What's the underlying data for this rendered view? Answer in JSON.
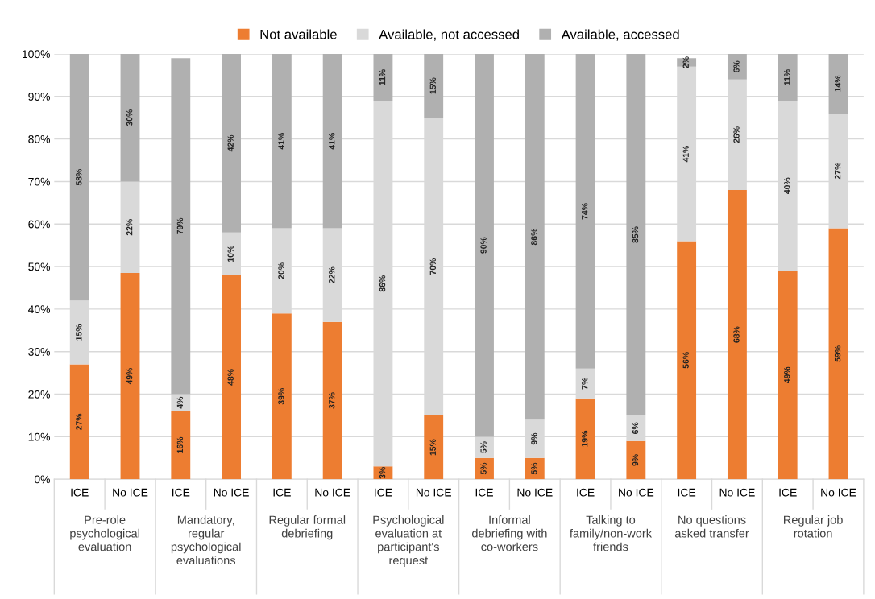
{
  "chart_data": {
    "type": "bar",
    "stacked": true,
    "categories": [
      "ICE",
      "No ICE",
      "ICE",
      "No ICE",
      "ICE",
      "No ICE",
      "ICE",
      "No ICE",
      "ICE",
      "No ICE",
      "ICE",
      "No ICE",
      "ICE",
      "No ICE",
      "ICE",
      "No ICE"
    ],
    "annotations": [
      "Pre-role psychological evaluation",
      "Mandatory, regular psychological evaluations",
      "Regular formal debriefing",
      "Psychological evaluation at participant's request",
      "Informal debriefing with co-workers",
      "Talking to family/non-work friends",
      "No questions asked transfer",
      "Regular job rotation"
    ],
    "series": [
      {
        "name": "Not available",
        "color": "#ed7d31",
        "values": [
          27,
          48.5,
          16,
          48,
          39,
          37,
          3,
          15,
          5,
          5,
          19,
          9,
          56,
          68,
          49,
          59
        ],
        "value_labels": [
          "27%",
          "49%",
          "16%",
          "48%",
          "39%",
          "37%",
          "3%",
          "15%",
          "5%",
          "5%",
          "19%",
          "9%",
          "56%",
          "68%",
          "49%",
          "59%"
        ]
      },
      {
        "name": "Available, not accessed",
        "color": "#d9d9d9",
        "values": [
          15,
          21.5,
          4,
          10,
          20,
          22,
          86,
          70,
          5,
          9,
          7,
          6,
          41,
          26,
          40,
          27
        ],
        "value_labels": [
          "15%",
          "22%",
          "4%",
          "10%",
          "20%",
          "22%",
          "86%",
          "70%",
          "5%",
          "9%",
          "7%",
          "6%",
          "41%",
          "26%",
          "40%",
          "27%"
        ]
      },
      {
        "name": "Available, accessed",
        "color": "#b0b0b0",
        "values": [
          58,
          30,
          79,
          42,
          41,
          41,
          11,
          15,
          90,
          86,
          74,
          85,
          2,
          6,
          11,
          14
        ],
        "value_labels": [
          "58%",
          "30%",
          "79%",
          "42%",
          "41%",
          "41%",
          "11%",
          "15%",
          "90%",
          "86%",
          "74%",
          "85%",
          "2%",
          "6%",
          "11%",
          "14%"
        ]
      }
    ],
    "ylim": [
      0,
      100
    ],
    "yticks": [
      {
        "value": 0,
        "label": "0%"
      },
      {
        "value": 10,
        "label": "10%"
      },
      {
        "value": 20,
        "label": "20%"
      },
      {
        "value": 30,
        "label": "30%"
      },
      {
        "value": 40,
        "label": "40%"
      },
      {
        "value": 50,
        "label": "50%"
      },
      {
        "value": 60,
        "label": "60%"
      },
      {
        "value": 70,
        "label": "70%"
      },
      {
        "value": 80,
        "label": "80%"
      },
      {
        "value": 90,
        "label": "90%"
      },
      {
        "value": 100,
        "label": "100%"
      }
    ],
    "grid": "y",
    "legend": "top"
  }
}
